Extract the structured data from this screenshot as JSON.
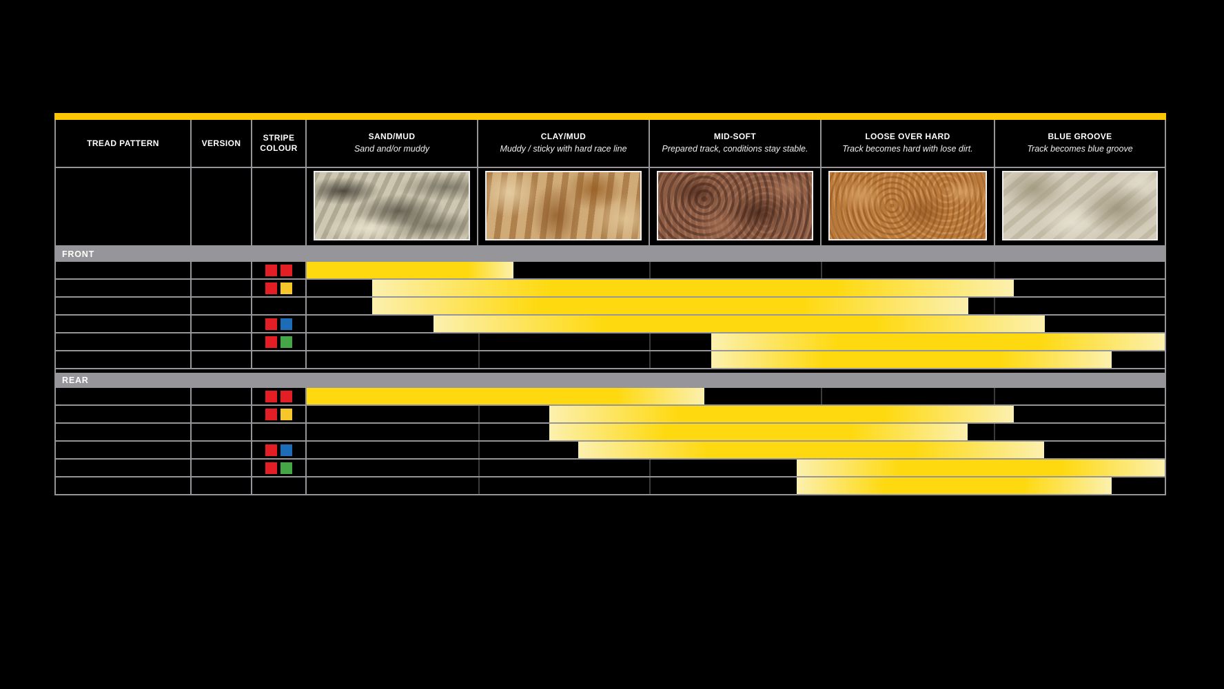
{
  "page": {
    "background": "#000000"
  },
  "table": {
    "accent_bar_color": "#fdc705",
    "grid_color": "#95959a",
    "bar_colors": {
      "solid": "#fed90f",
      "pale": "#fcf0ae"
    },
    "stripe_palette": {
      "red": "#e31e24",
      "yellow": "#f6c62b",
      "blue": "#1d6cb8",
      "green": "#45a648"
    },
    "header": {
      "columns": [
        {
          "id": "tread",
          "title": "TREAD PATTERN",
          "subtitle": ""
        },
        {
          "id": "version",
          "title": "VERSION",
          "subtitle": ""
        },
        {
          "id": "stripe",
          "title": "STRIPE COLOUR",
          "subtitle": ""
        },
        {
          "id": "sand",
          "title": "SAND/MUD",
          "subtitle": "Sand and/or muddy"
        },
        {
          "id": "clay",
          "title": "CLAY/MUD",
          "subtitle": "Muddy / sticky with hard race line"
        },
        {
          "id": "midsoft",
          "title": "MID-SOFT",
          "subtitle": "Prepared track, conditions stay stable."
        },
        {
          "id": "loose",
          "title": "LOOSE OVER HARD",
          "subtitle": "Track becomes hard with lose dirt."
        },
        {
          "id": "blue",
          "title": "BLUE GROOVE",
          "subtitle": "Track becomes blue groove"
        }
      ]
    },
    "condition_photos": [
      "sand-mud-photo",
      "clay-mud-photo",
      "mid-soft-photo",
      "loose-over-hard-photo",
      "blue-groove-photo"
    ],
    "track_divider_pcts": [
      19.97,
      39.94,
      59.9,
      80.11
    ],
    "sections": [
      {
        "id": "front",
        "label": "FRONT",
        "rows": [
          {
            "stripes": [
              "red",
              "red"
            ],
            "bar": {
              "start_pct": 0,
              "end_pct": 24.06,
              "fade_in": false,
              "fade_out": true
            }
          },
          {
            "stripes": [
              "red",
              "yellow"
            ],
            "bar": {
              "start_pct": 7.62,
              "end_pct": 82.44,
              "fade_in": true,
              "fade_out": true
            }
          },
          {
            "stripes": [],
            "bar": {
              "start_pct": 7.62,
              "end_pct": 77.07,
              "fade_in": true,
              "fade_out": true
            }
          },
          {
            "stripes": [
              "red",
              "blue"
            ],
            "bar": {
              "start_pct": 14.76,
              "end_pct": 86.05,
              "fade_in": true,
              "fade_out": true
            }
          },
          {
            "stripes": [
              "red",
              "green"
            ],
            "bar": {
              "start_pct": 47.15,
              "end_pct": 100,
              "fade_in": true,
              "fade_out": true
            }
          },
          {
            "stripes": [],
            "bar": {
              "start_pct": 47.15,
              "end_pct": 93.83,
              "fade_in": true,
              "fade_out": true
            }
          }
        ]
      },
      {
        "id": "rear",
        "label": "REAR",
        "rows": [
          {
            "stripes": [
              "red",
              "red"
            ],
            "bar": {
              "start_pct": 0,
              "end_pct": 46.35,
              "fade_in": false,
              "fade_out": true
            }
          },
          {
            "stripes": [
              "red",
              "yellow"
            ],
            "bar": {
              "start_pct": 28.31,
              "end_pct": 82.44,
              "fade_in": true,
              "fade_out": true
            }
          },
          {
            "stripes": [],
            "bar": {
              "start_pct": 28.31,
              "end_pct": 77.0,
              "fade_in": true,
              "fade_out": true
            }
          },
          {
            "stripes": [
              "red",
              "blue"
            ],
            "bar": {
              "start_pct": 31.68,
              "end_pct": 85.97,
              "fade_in": true,
              "fade_out": true
            }
          },
          {
            "stripes": [
              "red",
              "green"
            ],
            "bar": {
              "start_pct": 57.1,
              "end_pct": 100,
              "fade_in": true,
              "fade_out": true
            }
          },
          {
            "stripes": [],
            "bar": {
              "start_pct": 57.1,
              "end_pct": 93.83,
              "fade_in": true,
              "fade_out": true
            }
          }
        ]
      }
    ]
  },
  "chart_data": {
    "type": "bar",
    "subtype": "horizontal-range (application chart)",
    "categories": [
      "SAND/MUD",
      "CLAY/MUD",
      "MID-SOFT",
      "LOOSE OVER HARD",
      "BLUE GROOVE"
    ],
    "category_descriptions": [
      "Sand and/or muddy",
      "Muddy / sticky with hard race line",
      "Prepared track, conditions stay stable.",
      "Track becomes hard with lose dirt.",
      "Track becomes blue groove"
    ],
    "x_axis_units": "condition index, 0 = start of SAND/MUD, 5 = end of BLUE GROOVE",
    "xlim": [
      0,
      5
    ],
    "series": [
      {
        "section": "FRONT",
        "row": 1,
        "stripe_colour": [
          "red",
          "red"
        ],
        "range": [
          0.0,
          1.2
        ]
      },
      {
        "section": "FRONT",
        "row": 2,
        "stripe_colour": [
          "red",
          "yellow"
        ],
        "range": [
          0.38,
          4.12
        ]
      },
      {
        "section": "FRONT",
        "row": 3,
        "stripe_colour": [],
        "range": [
          0.38,
          3.85
        ]
      },
      {
        "section": "FRONT",
        "row": 4,
        "stripe_colour": [
          "red",
          "blue"
        ],
        "range": [
          0.74,
          4.3
        ]
      },
      {
        "section": "FRONT",
        "row": 5,
        "stripe_colour": [
          "red",
          "green"
        ],
        "range": [
          2.36,
          5.0
        ]
      },
      {
        "section": "FRONT",
        "row": 6,
        "stripe_colour": [],
        "range": [
          2.36,
          4.69
        ]
      },
      {
        "section": "REAR",
        "row": 1,
        "stripe_colour": [
          "red",
          "red"
        ],
        "range": [
          0.0,
          2.32
        ]
      },
      {
        "section": "REAR",
        "row": 2,
        "stripe_colour": [
          "red",
          "yellow"
        ],
        "range": [
          1.42,
          4.12
        ]
      },
      {
        "section": "REAR",
        "row": 3,
        "stripe_colour": [],
        "range": [
          1.42,
          3.85
        ]
      },
      {
        "section": "REAR",
        "row": 4,
        "stripe_colour": [
          "red",
          "blue"
        ],
        "range": [
          1.59,
          4.29
        ]
      },
      {
        "section": "REAR",
        "row": 5,
        "stripe_colour": [
          "red",
          "green"
        ],
        "range": [
          2.86,
          5.0
        ]
      },
      {
        "section": "REAR",
        "row": 6,
        "stripe_colour": [],
        "range": [
          2.86,
          4.69
        ]
      }
    ],
    "legend": "none",
    "grid": "gray cell grid on black background; yellow gradient bars indicate recommended usage range"
  }
}
